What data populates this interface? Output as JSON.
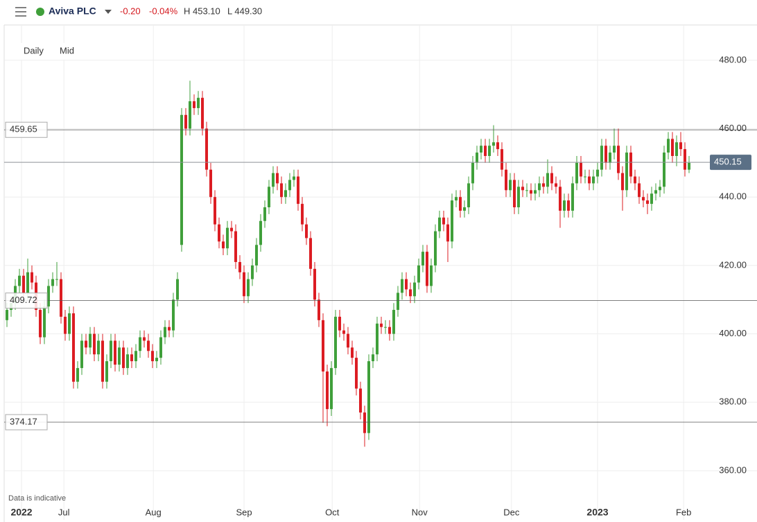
{
  "header": {
    "name": "Aviva PLC",
    "change": "-0.20",
    "change_pct": "-0.04%",
    "high": "H 453.10",
    "low": "L 449.30"
  },
  "controls": {
    "interval": "Daily",
    "price": "Mid"
  },
  "footnote": "Data is indicative",
  "chart_data": {
    "type": "candlestick",
    "up_color": "#3f9f3a",
    "down_color": "#dc1c22",
    "candles": {
      "open": [
        404,
        407,
        409,
        414,
        417,
        412,
        418,
        415,
        407,
        399,
        408,
        414,
        416,
        416,
        405,
        400,
        406,
        386,
        390,
        398,
        396,
        400,
        394,
        398,
        386,
        392,
        398,
        391,
        396,
        390,
        394,
        392,
        395,
        399,
        398,
        395,
        392,
        393,
        399,
        402,
        401,
        410,
        426,
        464,
        460,
        468,
        466,
        469,
        460,
        448,
        440,
        432,
        427,
        425,
        431,
        430,
        421,
        418,
        411,
        416,
        420,
        426,
        433,
        437,
        443,
        447,
        444,
        440,
        442,
        445,
        446,
        438,
        432,
        428,
        419,
        410,
        404,
        389,
        378,
        390,
        405,
        401,
        400,
        396,
        393,
        384,
        377,
        371,
        392,
        394,
        403,
        402,
        402,
        400,
        407,
        412,
        416,
        413,
        411,
        415,
        420,
        424,
        414,
        420,
        430,
        434,
        432,
        427,
        439,
        440,
        436,
        437,
        444,
        450,
        453,
        455,
        452,
        455,
        456,
        454,
        448,
        442,
        445,
        437,
        443,
        442,
        442,
        441,
        442,
        444,
        443,
        447,
        444,
        443,
        436,
        439,
        436,
        444,
        450,
        446,
        446,
        444,
        446,
        448,
        455,
        450,
        453,
        455,
        447,
        442,
        453,
        446,
        444,
        440,
        439,
        438,
        441,
        442,
        443,
        453,
        457,
        452,
        456,
        454,
        448
      ],
      "high": [
        409,
        411,
        416,
        419,
        419,
        422,
        420,
        417,
        409,
        410,
        416,
        418,
        421,
        418,
        407,
        408,
        408,
        392,
        400,
        400,
        402,
        402,
        400,
        400,
        394,
        400,
        400,
        398,
        398,
        396,
        396,
        397,
        401,
        401,
        400,
        397,
        395,
        401,
        404,
        404,
        412,
        418,
        466,
        466,
        474,
        470,
        471,
        471,
        462,
        450,
        442,
        434,
        429,
        433,
        433,
        432,
        423,
        420,
        418,
        422,
        428,
        435,
        439,
        445,
        449,
        449,
        446,
        444,
        447,
        448,
        448,
        440,
        434,
        430,
        421,
        412,
        406,
        391,
        392,
        407,
        407,
        403,
        402,
        398,
        395,
        386,
        379,
        394,
        396,
        405,
        405,
        404,
        404,
        409,
        414,
        418,
        418,
        415,
        417,
        422,
        426,
        426,
        422,
        432,
        436,
        436,
        434,
        441,
        442,
        442,
        439,
        446,
        452,
        455,
        457,
        457,
        457,
        461,
        458,
        456,
        450,
        447,
        447,
        445,
        445,
        444,
        444,
        444,
        446,
        446,
        451,
        449,
        446,
        445,
        441,
        441,
        446,
        452,
        452,
        448,
        448,
        448,
        450,
        457,
        457,
        455,
        460,
        460,
        449,
        455,
        455,
        448,
        446,
        442,
        441,
        443,
        444,
        445,
        455,
        459,
        459,
        458,
        459,
        456,
        452
      ],
      "low": [
        402,
        405,
        407,
        412,
        410,
        410,
        413,
        405,
        397,
        397,
        406,
        412,
        414,
        403,
        398,
        398,
        384,
        384,
        388,
        394,
        394,
        392,
        392,
        384,
        384,
        390,
        389,
        389,
        388,
        388,
        390,
        390,
        393,
        396,
        393,
        390,
        390,
        391,
        397,
        399,
        399,
        408,
        424,
        458,
        458,
        464,
        464,
        458,
        446,
        438,
        430,
        425,
        423,
        423,
        428,
        419,
        416,
        409,
        409,
        414,
        418,
        424,
        431,
        435,
        441,
        442,
        438,
        438,
        440,
        443,
        436,
        430,
        426,
        417,
        408,
        402,
        374,
        373,
        376,
        388,
        399,
        398,
        394,
        391,
        382,
        375,
        367,
        369,
        390,
        392,
        400,
        400,
        398,
        398,
        405,
        410,
        411,
        409,
        409,
        413,
        418,
        412,
        412,
        418,
        428,
        430,
        421,
        425,
        437,
        434,
        434,
        435,
        442,
        448,
        451,
        450,
        450,
        453,
        452,
        446,
        440,
        440,
        435,
        435,
        440,
        440,
        439,
        439,
        440,
        441,
        441,
        442,
        441,
        431,
        434,
        434,
        434,
        442,
        444,
        444,
        442,
        442,
        444,
        446,
        448,
        448,
        451,
        445,
        436,
        440,
        444,
        442,
        438,
        437,
        435,
        436,
        439,
        440,
        441,
        451,
        450,
        449,
        452,
        446,
        447
      ],
      "close": [
        407,
        409,
        414,
        417,
        412,
        418,
        415,
        407,
        399,
        408,
        414,
        416,
        416,
        405,
        400,
        406,
        386,
        390,
        398,
        396,
        400,
        394,
        398,
        386,
        392,
        398,
        391,
        396,
        390,
        394,
        392,
        395,
        399,
        398,
        395,
        392,
        393,
        399,
        402,
        401,
        410,
        416,
        464,
        460,
        468,
        466,
        469,
        460,
        448,
        440,
        432,
        427,
        425,
        431,
        430,
        421,
        418,
        411,
        416,
        420,
        426,
        433,
        437,
        443,
        447,
        444,
        440,
        442,
        445,
        446,
        438,
        432,
        428,
        419,
        410,
        404,
        389,
        378,
        390,
        405,
        401,
        400,
        396,
        393,
        384,
        377,
        371,
        392,
        394,
        403,
        402,
        402,
        400,
        407,
        412,
        416,
        413,
        411,
        415,
        420,
        424,
        414,
        420,
        430,
        434,
        432,
        427,
        439,
        440,
        436,
        437,
        444,
        450,
        453,
        455,
        452,
        455,
        456,
        454,
        448,
        442,
        445,
        437,
        443,
        442,
        442,
        441,
        442,
        444,
        443,
        447,
        444,
        443,
        436,
        439,
        436,
        444,
        450,
        446,
        446,
        444,
        446,
        448,
        455,
        450,
        453,
        455,
        447,
        442,
        453,
        446,
        444,
        440,
        439,
        438,
        441,
        442,
        443,
        453,
        457,
        452,
        456,
        454,
        448,
        450
      ]
    },
    "xlim": [
      -0.67,
      165
    ],
    "xticks": [
      {
        "value": 3.5,
        "label": "2022"
      },
      {
        "value": 13.7,
        "label": "Jul"
      },
      {
        "value": 35.2,
        "label": "Aug"
      },
      {
        "value": 57,
        "label": "Sep"
      },
      {
        "value": 78.2,
        "label": "Oct"
      },
      {
        "value": 99.2,
        "label": "Nov"
      },
      {
        "value": 121.3,
        "label": "Dec"
      },
      {
        "value": 142,
        "label": "2023"
      },
      {
        "value": 162.7,
        "label": "Feb"
      }
    ],
    "ylim": [
      345.6,
      490.1
    ],
    "yticks": [
      {
        "value": 360,
        "label": "360.00"
      },
      {
        "value": 380,
        "label": "380.00"
      },
      {
        "value": 400,
        "label": "400.00"
      },
      {
        "value": 420,
        "label": "420.00"
      },
      {
        "value": 440,
        "label": "440.00"
      },
      {
        "value": 460,
        "label": "460.00"
      },
      {
        "value": 480,
        "label": "480.00"
      }
    ],
    "levels": [
      459.65,
      409.72,
      374.17
    ],
    "last_price": 450.15,
    "grid": true
  }
}
